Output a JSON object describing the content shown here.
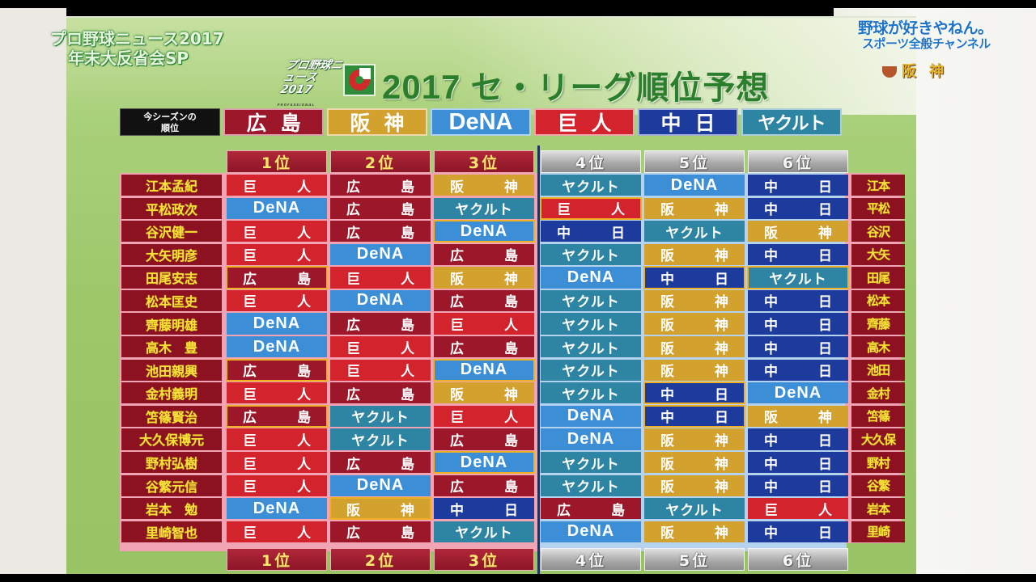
{
  "show": {
    "title_line1": "プロ野球ニュース2017",
    "title_line2": "年末大反省会SP",
    "program_logo": "プロ野球ニュース2017",
    "program_logo_small": "PROFESSIONAL BASEBALL NEWS"
  },
  "channel": {
    "line1": "野球が好きやねん。",
    "line2": "スポーツ全般チャンネル",
    "mini_logo": "阪神"
  },
  "board_title": {
    "year": "2017",
    "text": "セ・リーグ順位予想"
  },
  "season_standings": {
    "label_line1": "今シーズンの",
    "label_line2": "順位",
    "teams": [
      {
        "name": "広島",
        "key": "hiroshima"
      },
      {
        "name": "阪神",
        "key": "hanshin"
      },
      {
        "name": "DeNA",
        "key": "dena"
      },
      {
        "name": "巨人",
        "key": "kyojin"
      },
      {
        "name": "中日",
        "key": "chunichi"
      },
      {
        "name": "ヤクルト",
        "key": "yakult"
      }
    ]
  },
  "rank_headers": [
    "1位",
    "2位",
    "3位",
    "4位",
    "5位",
    "6位"
  ],
  "team_colors": {
    "hiroshima": "#9b1729",
    "hanshin": "#d2a12e",
    "dena": "#3c8fd6",
    "kyojin": "#d3242e",
    "chunichi": "#1c3b9c",
    "yakult": "#2d84a3",
    "highlight_border": "#f0b024",
    "name_bg": "#8c1222",
    "name_text": "#f7e23a"
  },
  "predictions": [
    {
      "name": "江本孟紀",
      "short": "江本",
      "picks": [
        "巨人",
        "広島",
        "阪神",
        "ヤクルト",
        "DeNA",
        "中日"
      ],
      "highlights": []
    },
    {
      "name": "平松政次",
      "short": "平松",
      "picks": [
        "DeNA",
        "広島",
        "ヤクルト",
        "巨人",
        "阪神",
        "中日"
      ],
      "highlights": [
        3
      ]
    },
    {
      "name": "谷沢健一",
      "short": "谷沢",
      "picks": [
        "巨人",
        "広島",
        "DeNA",
        "中日",
        "ヤクルト",
        "阪神"
      ],
      "highlights": [
        2
      ]
    },
    {
      "name": "大矢明彦",
      "short": "大矢",
      "picks": [
        "巨人",
        "DeNA",
        "広島",
        "ヤクルト",
        "阪神",
        "中日"
      ],
      "highlights": []
    },
    {
      "name": "田尾安志",
      "short": "田尾",
      "picks": [
        "広島",
        "巨人",
        "阪神",
        "DeNA",
        "中日",
        "ヤクルト"
      ],
      "highlights": [
        0,
        4,
        5
      ]
    },
    {
      "name": "松本匡史",
      "short": "松本",
      "picks": [
        "巨人",
        "DeNA",
        "広島",
        "ヤクルト",
        "阪神",
        "中日"
      ],
      "highlights": []
    },
    {
      "name": "齊藤明雄",
      "short": "齊藤",
      "picks": [
        "DeNA",
        "広島",
        "巨人",
        "ヤクルト",
        "阪神",
        "中日"
      ],
      "highlights": []
    },
    {
      "name": "高木　豊",
      "short": "高木",
      "picks": [
        "DeNA",
        "巨人",
        "広島",
        "ヤクルト",
        "阪神",
        "中日"
      ],
      "highlights": []
    },
    {
      "name": "池田親興",
      "short": "池田",
      "picks": [
        "広島",
        "巨人",
        "DeNA",
        "ヤクルト",
        "阪神",
        "中日"
      ],
      "highlights": [
        0,
        2
      ]
    },
    {
      "name": "金村義明",
      "short": "金村",
      "picks": [
        "巨人",
        "広島",
        "阪神",
        "ヤクルト",
        "中日",
        "DeNA"
      ],
      "highlights": [
        4
      ]
    },
    {
      "name": "笘篠賢治",
      "short": "笘篠",
      "picks": [
        "広島",
        "ヤクルト",
        "巨人",
        "DeNA",
        "中日",
        "阪神"
      ],
      "highlights": [
        0,
        4
      ]
    },
    {
      "name": "大久保博元",
      "short": "大久保",
      "picks": [
        "巨人",
        "ヤクルト",
        "広島",
        "DeNA",
        "阪神",
        "中日"
      ],
      "highlights": []
    },
    {
      "name": "野村弘樹",
      "short": "野村",
      "picks": [
        "巨人",
        "広島",
        "DeNA",
        "ヤクルト",
        "阪神",
        "中日"
      ],
      "highlights": [
        2
      ]
    },
    {
      "name": "谷繁元信",
      "short": "谷繁",
      "picks": [
        "巨人",
        "DeNA",
        "広島",
        "ヤクルト",
        "阪神",
        "中日"
      ],
      "highlights": []
    },
    {
      "name": "岩本　勉",
      "short": "岩本",
      "picks": [
        "DeNA",
        "阪神",
        "中日",
        "広島",
        "ヤクルト",
        "巨人"
      ],
      "highlights": [
        1
      ]
    },
    {
      "name": "里崎智也",
      "short": "里崎",
      "picks": [
        "巨人",
        "広島",
        "ヤクルト",
        "DeNA",
        "阪神",
        "中日"
      ],
      "highlights": []
    }
  ]
}
